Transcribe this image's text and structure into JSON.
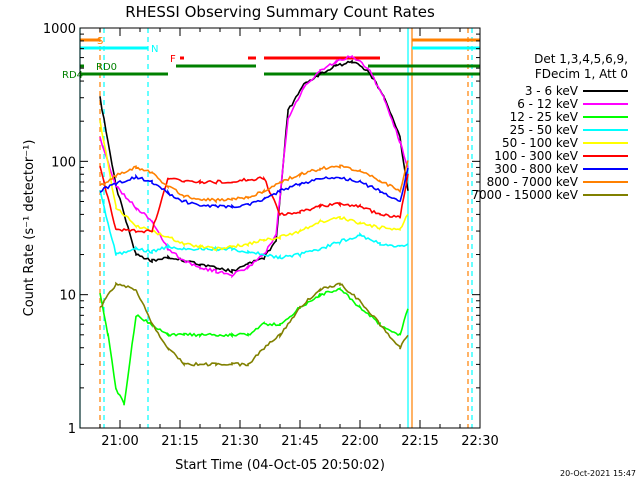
{
  "chart_data": {
    "type": "line",
    "title": "RHESSI Observing Summary Count Rates",
    "xlabel": "Start Time (04-Oct-05 20:50:02)",
    "ylabel": "Count Rate (s⁻¹ detector⁻¹)",
    "y_scale": "log",
    "ylim": [
      1,
      1000
    ],
    "xlim": [
      "20:50",
      "22:30"
    ],
    "x_ticks": [
      "21:00",
      "21:15",
      "21:30",
      "21:45",
      "22:00",
      "22:15",
      "22:30"
    ],
    "y_ticks": [
      "1",
      "10",
      "100",
      "1000"
    ],
    "legend_header": [
      "Det 1,3,4,5,6,9,",
      "FDecim 1, Att 0"
    ],
    "legend_position": "right",
    "timestamp": "20-Oct-2021 15:47",
    "series": [
      {
        "name": "3 - 6 keV",
        "color": "#000000",
        "x": [
          "20:55",
          "20:59",
          "21:04",
          "21:08",
          "21:12",
          "21:16",
          "21:20",
          "21:24",
          "21:28",
          "21:32",
          "21:36",
          "21:39",
          "21:42",
          "21:46",
          "21:50",
          "21:54",
          "21:58",
          "22:02",
          "22:06",
          "22:10",
          "22:12"
        ],
        "values": [
          300,
          65,
          20,
          18,
          19,
          18,
          17,
          16,
          15,
          17,
          19,
          25,
          240,
          380,
          450,
          520,
          560,
          480,
          310,
          150,
          60
        ]
      },
      {
        "name": "6 - 12 keV",
        "color": "#ff00ff",
        "x": [
          "20:55",
          "20:59",
          "21:04",
          "21:08",
          "21:12",
          "21:16",
          "21:20",
          "21:24",
          "21:28",
          "21:32",
          "21:36",
          "21:39",
          "21:42",
          "21:46",
          "21:50",
          "21:54",
          "21:58",
          "22:02",
          "22:06",
          "22:10",
          "22:12"
        ],
        "values": [
          150,
          65,
          45,
          36,
          22,
          18,
          16,
          15,
          14,
          16,
          20,
          28,
          210,
          360,
          480,
          560,
          620,
          500,
          300,
          140,
          90
        ]
      },
      {
        "name": "12 - 25 keV",
        "color": "#00ff00",
        "x": [
          "20:55",
          "20:57",
          "20:59",
          "21:01",
          "21:04",
          "21:08",
          "21:12",
          "21:16",
          "21:20",
          "21:24",
          "21:28",
          "21:32",
          "21:36",
          "21:40",
          "21:45",
          "21:50",
          "21:55",
          "22:00",
          "22:05",
          "22:10",
          "22:12"
        ],
        "values": [
          10,
          5,
          2,
          1.5,
          7,
          6,
          5,
          5,
          5,
          5,
          5,
          5,
          6,
          6,
          8,
          10,
          11,
          8,
          6,
          5,
          8
        ]
      },
      {
        "name": "25 - 50 keV",
        "color": "#00ffff",
        "x": [
          "20:55",
          "20:59",
          "21:04",
          "21:08",
          "21:12",
          "21:16",
          "21:20",
          "21:24",
          "21:28",
          "21:32",
          "21:36",
          "21:40",
          "21:45",
          "21:50",
          "21:55",
          "22:00",
          "22:05",
          "22:10",
          "22:12"
        ],
        "values": [
          60,
          20,
          22,
          21,
          23,
          22,
          22,
          22,
          22,
          21,
          20,
          19,
          20,
          22,
          25,
          28,
          24,
          23,
          24
        ]
      },
      {
        "name": "50 - 100 keV",
        "color": "#ffff00",
        "x": [
          "20:55",
          "20:59",
          "21:04",
          "21:08",
          "21:12",
          "21:16",
          "21:20",
          "21:24",
          "21:28",
          "21:32",
          "21:36",
          "21:40",
          "21:45",
          "21:50",
          "21:55",
          "22:00",
          "22:05",
          "22:10",
          "22:12"
        ],
        "values": [
          200,
          45,
          33,
          30,
          27,
          24,
          23,
          22,
          23,
          24,
          26,
          27,
          30,
          35,
          38,
          34,
          32,
          31,
          40
        ]
      },
      {
        "name": "100 - 300 keV",
        "color": "#ff0000",
        "x": [
          "20:55",
          "20:59",
          "21:04",
          "21:08",
          "21:12",
          "21:16",
          "21:20",
          "21:24",
          "21:28",
          "21:32",
          "21:36",
          "21:40",
          "21:45",
          "21:50",
          "21:55",
          "22:00",
          "22:05",
          "22:10",
          "22:12"
        ],
        "values": [
          90,
          31,
          30,
          30,
          75,
          72,
          70,
          70,
          71,
          73,
          75,
          40,
          42,
          46,
          48,
          46,
          40,
          38,
          80
        ]
      },
      {
        "name": "300 - 800 keV",
        "color": "#0000ff",
        "x": [
          "20:55",
          "20:59",
          "21:04",
          "21:08",
          "21:12",
          "21:16",
          "21:20",
          "21:24",
          "21:28",
          "21:32",
          "21:36",
          "21:40",
          "21:45",
          "21:50",
          "21:55",
          "22:00",
          "22:05",
          "22:10",
          "22:12"
        ],
        "values": [
          60,
          68,
          76,
          70,
          58,
          50,
          47,
          46,
          46,
          47,
          52,
          60,
          68,
          74,
          76,
          70,
          60,
          50,
          90
        ]
      },
      {
        "name": "800 - 7000 keV",
        "color": "#ff8000",
        "x": [
          "20:55",
          "20:59",
          "21:04",
          "21:08",
          "21:12",
          "21:16",
          "21:20",
          "21:24",
          "21:28",
          "21:32",
          "21:36",
          "21:40",
          "21:45",
          "21:50",
          "21:55",
          "22:00",
          "22:05",
          "22:10",
          "22:12"
        ],
        "values": [
          65,
          78,
          90,
          82,
          65,
          55,
          52,
          51,
          52,
          54,
          60,
          70,
          80,
          88,
          92,
          84,
          72,
          60,
          100
        ]
      },
      {
        "name": "7000 - 15000 keV",
        "color": "#808000",
        "x": [
          "20:55",
          "20:59",
          "21:04",
          "21:08",
          "21:12",
          "21:16",
          "21:20",
          "21:24",
          "21:28",
          "21:32",
          "21:36",
          "21:40",
          "21:45",
          "21:50",
          "21:55",
          "22:00",
          "22:05",
          "22:10",
          "22:12"
        ],
        "values": [
          8,
          12,
          11,
          6,
          4,
          3,
          3,
          3,
          3,
          3,
          4,
          5,
          8,
          11,
          12,
          9,
          6,
          4,
          5
        ]
      }
    ],
    "flags": [
      {
        "label": "S",
        "color": "#ff8000",
        "segments": [
          [
            "20:50",
            "20:55"
          ],
          [
            "22:13",
            "22:30"
          ]
        ]
      },
      {
        "label": "N",
        "color": "#00ffff",
        "segments": [
          [
            "20:50",
            "21:07"
          ],
          [
            "22:13",
            "22:30"
          ]
        ]
      },
      {
        "label": "F",
        "color": "#ff0000",
        "segments": [
          [
            "21:15",
            "21:16"
          ],
          [
            "21:32",
            "21:34"
          ],
          [
            "21:36",
            "22:05"
          ]
        ]
      },
      {
        "label": "RD0",
        "color": "#008000",
        "segments": [
          [
            "20:50",
            "20:51"
          ],
          [
            "21:14",
            "21:34"
          ],
          [
            "22:02",
            "22:30"
          ]
        ]
      },
      {
        "label": "RD4",
        "color": "#008000",
        "segments": [
          [
            "20:50",
            "21:12"
          ],
          [
            "21:36",
            "22:30"
          ]
        ]
      }
    ],
    "vertical_lines": [
      {
        "x": "20:50",
        "color": "#00ffff",
        "style": "solid"
      },
      {
        "x": "20:55",
        "color": "#ff8000",
        "style": "dashed"
      },
      {
        "x": "20:56",
        "color": "#00ffff",
        "style": "dashed"
      },
      {
        "x": "21:07",
        "color": "#00ffff",
        "style": "dashed"
      },
      {
        "x": "22:12",
        "color": "#00ffff",
        "style": "solid"
      },
      {
        "x": "22:13",
        "color": "#ff8000",
        "style": "solid"
      },
      {
        "x": "22:27",
        "color": "#ff8000",
        "style": "dashed"
      },
      {
        "x": "22:28",
        "color": "#00ffff",
        "style": "dashed"
      }
    ]
  }
}
